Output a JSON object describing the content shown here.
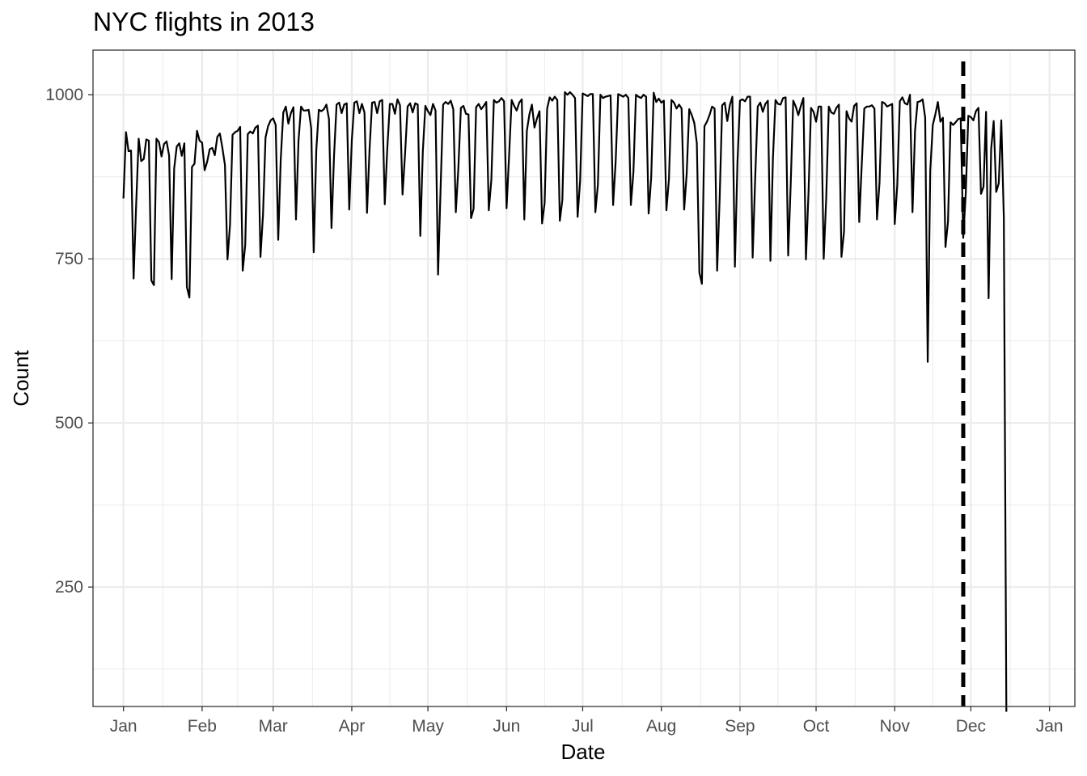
{
  "chart_data": {
    "type": "line",
    "title": "NYC flights in 2013",
    "xlabel": "Date",
    "ylabel": "Count",
    "x_start": "2013-01-01",
    "x_end": "2013-12-31",
    "xlim": [
      "2012-12-20",
      "2014-01-11"
    ],
    "ylim": [
      68,
      1068
    ],
    "x_ticks": [
      {
        "date": "2013-01-01",
        "label": "Jan"
      },
      {
        "date": "2013-02-01",
        "label": "Feb"
      },
      {
        "date": "2013-03-01",
        "label": "Mar"
      },
      {
        "date": "2013-04-01",
        "label": "Apr"
      },
      {
        "date": "2013-05-01",
        "label": "May"
      },
      {
        "date": "2013-06-01",
        "label": "Jun"
      },
      {
        "date": "2013-07-01",
        "label": "Jul"
      },
      {
        "date": "2013-08-01",
        "label": "Aug"
      },
      {
        "date": "2013-09-01",
        "label": "Sep"
      },
      {
        "date": "2013-10-01",
        "label": "Oct"
      },
      {
        "date": "2013-11-01",
        "label": "Nov"
      },
      {
        "date": "2013-12-01",
        "label": "Dec"
      },
      {
        "date": "2014-01-01",
        "label": "Jan"
      }
    ],
    "y_ticks": [
      250,
      500,
      750,
      1000
    ],
    "grid": true,
    "reference_line": {
      "date": "2013-11-28",
      "style": "dashed",
      "color": "#000000"
    },
    "line_color": "#000000",
    "values": [
      842,
      943,
      914,
      915,
      720,
      832,
      933,
      899,
      902,
      932,
      930,
      717,
      710,
      933,
      928,
      906,
      925,
      929,
      907,
      719,
      888,
      921,
      926,
      907,
      926,
      707,
      691,
      890,
      895,
      945,
      930,
      927,
      885,
      898,
      917,
      919,
      908,
      936,
      941,
      919,
      893,
      749,
      802,
      939,
      943,
      945,
      951,
      732,
      771,
      940,
      944,
      941,
      950,
      953,
      753,
      817,
      935,
      952,
      961,
      964,
      954,
      779,
      902,
      973,
      982,
      956,
      972,
      981,
      810,
      930,
      982,
      976,
      976,
      977,
      949,
      760,
      915,
      977,
      975,
      978,
      985,
      963,
      797,
      907,
      985,
      988,
      972,
      985,
      987,
      825,
      930,
      988,
      990,
      972,
      986,
      973,
      820,
      917,
      988,
      989,
      972,
      990,
      992,
      833,
      919,
      986,
      986,
      971,
      993,
      984,
      848,
      910,
      982,
      987,
      973,
      987,
      985,
      785,
      914,
      983,
      975,
      969,
      986,
      976,
      726,
      857,
      985,
      989,
      986,
      991,
      978,
      821,
      888,
      980,
      983,
      971,
      970,
      812,
      826,
      981,
      986,
      978,
      983,
      989,
      824,
      870,
      992,
      988,
      990,
      995,
      990,
      827,
      907,
      992,
      983,
      976,
      988,
      993,
      810,
      945,
      970,
      985,
      950,
      964,
      975,
      804,
      835,
      979,
      996,
      991,
      997,
      992,
      808,
      840,
      1004,
      1000,
      1004,
      1000,
      995,
      814,
      869,
      1002,
      1000,
      998,
      1001,
      1001,
      821,
      863,
      1000,
      995,
      997,
      998,
      999,
      832,
      898,
      1001,
      999,
      997,
      1000,
      995,
      832,
      882,
      1000,
      997,
      995,
      1000,
      997,
      819,
      873,
      1003,
      989,
      994,
      988,
      991,
      824,
      871,
      992,
      988,
      979,
      985,
      979,
      825,
      880,
      978,
      969,
      957,
      926,
      729,
      712,
      952,
      959,
      969,
      982,
      979,
      732,
      843,
      984,
      988,
      960,
      984,
      997,
      738,
      896,
      991,
      993,
      990,
      997,
      997,
      752,
      873,
      982,
      988,
      974,
      986,
      991,
      747,
      904,
      992,
      986,
      985,
      995,
      996,
      755,
      864,
      991,
      982,
      969,
      983,
      995,
      749,
      849,
      980,
      974,
      959,
      982,
      982,
      750,
      843,
      982,
      973,
      971,
      980,
      985,
      753,
      791,
      975,
      964,
      959,
      983,
      987,
      806,
      894,
      979,
      982,
      982,
      984,
      979,
      810,
      866,
      989,
      987,
      982,
      984,
      986,
      803,
      862,
      990,
      996,
      987,
      985,
      1000,
      821,
      945,
      989,
      990,
      993,
      965,
      593,
      884,
      954,
      970,
      989,
      959,
      965,
      768,
      807,
      958,
      954,
      958,
      963,
      964,
      782,
      850,
      968,
      966,
      961,
      975,
      980,
      849,
      860,
      974,
      690,
      917,
      960,
      852,
      865,
      961,
      812,
      60
    ]
  }
}
